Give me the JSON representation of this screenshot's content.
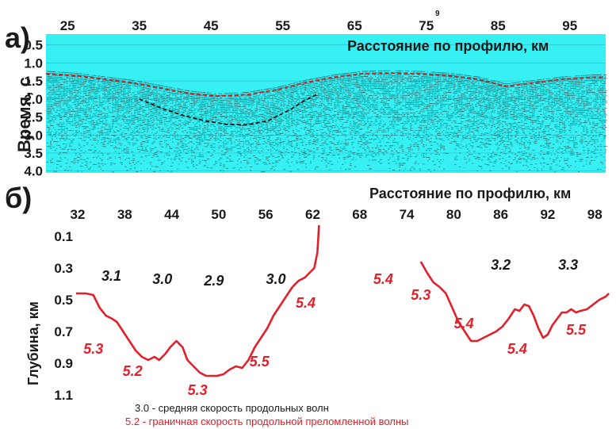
{
  "chart_data": [
    {
      "type": "heatmap",
      "panel_label": "а)",
      "xlabel": "Расстояние по профилю, км",
      "ylabel": "Время, с",
      "x_ticks": [
        "25",
        "35",
        "45",
        "55",
        "65",
        "75",
        "85",
        "95"
      ],
      "x_tick_values": [
        25,
        35,
        45,
        55,
        65,
        75,
        85,
        95
      ],
      "y_ticks": [
        "0.5",
        "1.0",
        "1.5",
        "2.0",
        "2.5",
        "3.0",
        "3.5",
        "4.0"
      ],
      "y_tick_values": [
        0.5,
        1.0,
        1.5,
        2.0,
        2.5,
        3.0,
        3.5,
        4.0
      ],
      "xlim": [
        22,
        100
      ],
      "ylim": [
        0.2,
        4.05
      ],
      "extra_label": "9",
      "background_color": "#36f0f4",
      "reflector_upper": {
        "x": [
          22,
          26,
          30,
          34,
          38,
          42,
          46,
          50,
          54,
          58,
          62,
          66,
          70,
          74,
          78,
          82,
          86,
          90,
          94,
          98,
          100
        ],
        "y": [
          1.3,
          1.35,
          1.45,
          1.55,
          1.7,
          1.85,
          1.92,
          1.88,
          1.75,
          1.55,
          1.4,
          1.3,
          1.28,
          1.3,
          1.35,
          1.45,
          1.65,
          1.55,
          1.45,
          1.4,
          1.4
        ]
      },
      "reflector_lower": {
        "x": [
          35,
          38,
          41,
          44,
          47,
          50,
          53,
          56,
          58,
          60
        ],
        "y": [
          2.0,
          2.25,
          2.45,
          2.6,
          2.7,
          2.72,
          2.6,
          2.3,
          2.05,
          1.85
        ]
      }
    },
    {
      "type": "line",
      "panel_label": "б)",
      "xlabel": "Расстояние по профилю, км",
      "ylabel": "Глубина, км",
      "x_ticks": [
        "32",
        "38",
        "44",
        "50",
        "56",
        "62",
        "68",
        "74",
        "80",
        "86",
        "92",
        "98"
      ],
      "x_tick_values": [
        32,
        38,
        44,
        50,
        56,
        62,
        68,
        74,
        80,
        86,
        92,
        98
      ],
      "y_ticks": [
        "0.1",
        "0.3",
        "0.5",
        "0.7",
        "0.9",
        "1.1"
      ],
      "y_tick_values": [
        0.1,
        0.3,
        0.5,
        0.7,
        0.9,
        1.1
      ],
      "xlim": [
        32,
        100
      ],
      "ylim": [
        0.0,
        1.15
      ],
      "series": [
        {
          "color": "#e0202a",
          "x": [
            32.0,
            33.2,
            34.2,
            35.0,
            35.8,
            36.6,
            37.2,
            38.0,
            38.8,
            39.6,
            40.4,
            41.2,
            42.0,
            42.6,
            43.4,
            44.0,
            44.8,
            45.6,
            46.2,
            47.0,
            47.8,
            48.6,
            49.4,
            50.0,
            50.8,
            51.6,
            52.4,
            53.2,
            54.0,
            54.8,
            55.6,
            56.4,
            57.2,
            58.0,
            58.8,
            59.6,
            60.4,
            61.2,
            61.8,
            62.4,
            62.8,
            63.0
          ],
          "y": [
            0.46,
            0.46,
            0.47,
            0.55,
            0.6,
            0.62,
            0.64,
            0.7,
            0.76,
            0.82,
            0.86,
            0.88,
            0.86,
            0.88,
            0.84,
            0.8,
            0.76,
            0.8,
            0.88,
            0.92,
            0.96,
            0.98,
            0.98,
            0.98,
            0.97,
            0.94,
            0.92,
            0.93,
            0.88,
            0.8,
            0.74,
            0.68,
            0.6,
            0.54,
            0.48,
            0.42,
            0.38,
            0.36,
            0.33,
            0.3,
            0.2,
            0.03
          ]
        },
        {
          "color": "#e0202a",
          "x": [
            76.0,
            76.8,
            77.6,
            78.4,
            79.2,
            80.0,
            80.8,
            81.6,
            82.4,
            83.2,
            84.0,
            84.8,
            85.6,
            86.4,
            87.2,
            88.0,
            88.6,
            89.2,
            89.8,
            90.4,
            91.0,
            91.6,
            92.2,
            92.8,
            93.4,
            94.0,
            94.6,
            95.2,
            95.8,
            96.4,
            97.2,
            98.0,
            98.8,
            99.6,
            100.0
          ],
          "y": [
            0.26,
            0.33,
            0.39,
            0.42,
            0.46,
            0.55,
            0.64,
            0.7,
            0.76,
            0.76,
            0.74,
            0.72,
            0.7,
            0.67,
            0.62,
            0.56,
            0.57,
            0.53,
            0.54,
            0.6,
            0.68,
            0.74,
            0.72,
            0.66,
            0.62,
            0.58,
            0.58,
            0.56,
            0.58,
            0.57,
            0.56,
            0.53,
            0.5,
            0.48,
            0.46
          ]
        }
      ],
      "annotations": [
        {
          "text": "3.1",
          "x": 36.5,
          "y": 0.35,
          "color": "black"
        },
        {
          "text": "3.0",
          "x": 43.0,
          "y": 0.37,
          "color": "black"
        },
        {
          "text": "2.9",
          "x": 49.6,
          "y": 0.38,
          "color": "black"
        },
        {
          "text": "3.0",
          "x": 57.5,
          "y": 0.37,
          "color": "black"
        },
        {
          "text": "3.2",
          "x": 86.2,
          "y": 0.28,
          "color": "black"
        },
        {
          "text": "3.3",
          "x": 94.8,
          "y": 0.28,
          "color": "black"
        },
        {
          "text": "5.4",
          "x": 71.2,
          "y": 0.37,
          "color": "red"
        },
        {
          "text": "5.3",
          "x": 76.0,
          "y": 0.47,
          "color": "red"
        },
        {
          "text": "5.4",
          "x": 81.5,
          "y": 0.65,
          "color": "red"
        },
        {
          "text": "5.4",
          "x": 88.3,
          "y": 0.81,
          "color": "red"
        },
        {
          "text": "5.5",
          "x": 95.8,
          "y": 0.69,
          "color": "red"
        },
        {
          "text": "5.4",
          "x": 61.3,
          "y": 0.52,
          "color": "red"
        },
        {
          "text": "5.5",
          "x": 55.4,
          "y": 0.89,
          "color": "red"
        },
        {
          "text": "5.3",
          "x": 34.2,
          "y": 0.81,
          "color": "red"
        },
        {
          "text": "5.2",
          "x": 39.2,
          "y": 0.95,
          "color": "red"
        },
        {
          "text": "5.3",
          "x": 47.5,
          "y": 1.07,
          "color": "red"
        }
      ],
      "legend": [
        {
          "text": "3.0 - средняя скорость продольных волн",
          "color": "black"
        },
        {
          "text": "5.2 - граничная скорость продольной преломленной волны",
          "color": "red"
        }
      ]
    }
  ]
}
